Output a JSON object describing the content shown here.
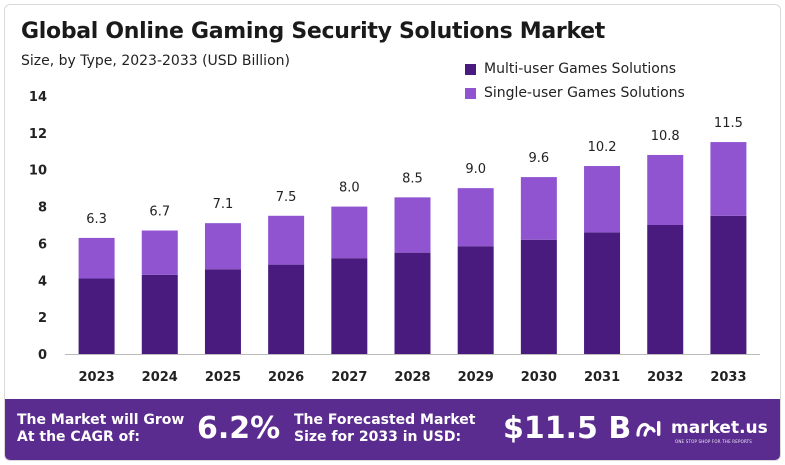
{
  "title": "Global Online Gaming Security Solutions Market",
  "subtitle": "Size, by Type, 2023-2033 (USD Billion)",
  "colors": {
    "multi": "#4a1b7e",
    "single": "#9154d1",
    "footer": "#5b2c8f",
    "bar_label": "#222222"
  },
  "chart_data": {
    "type": "bar",
    "stacked": true,
    "categories": [
      "2023",
      "2024",
      "2025",
      "2026",
      "2027",
      "2028",
      "2029",
      "2030",
      "2031",
      "2032",
      "2033"
    ],
    "series": [
      {
        "name": "Multi-user Games Solutions",
        "values": [
          4.1,
          4.3,
          4.6,
          4.85,
          5.2,
          5.5,
          5.85,
          6.2,
          6.6,
          7.0,
          7.5
        ]
      },
      {
        "name": "Single-user Games Solutions",
        "values": [
          2.2,
          2.4,
          2.5,
          2.65,
          2.8,
          3.0,
          3.15,
          3.4,
          3.6,
          3.8,
          4.0
        ]
      }
    ],
    "totals": [
      "6.3",
      "6.7",
      "7.1",
      "7.5",
      "8.0",
      "8.5",
      "9.0",
      "9.6",
      "10.2",
      "10.8",
      "11.5"
    ],
    "yticks": [
      "0",
      "2",
      "4",
      "6",
      "8",
      "10",
      "12",
      "14"
    ],
    "ylim": [
      0,
      14
    ],
    "grid": false,
    "legend_position": "top-right"
  },
  "footer": {
    "cagr_label_line1": "The Market will Grow",
    "cagr_label_line2": "At the CAGR of:",
    "cagr_value": "6.2%",
    "forecast_label_line1": "The Forecasted Market",
    "forecast_label_line2": "Size for 2033 in USD:",
    "forecast_value": "$11.5 B",
    "brand_name": "market.us",
    "brand_tagline": "ONE STOP SHOP FOR THE REPORTS",
    "brand_icon": "market-us-logo-icon"
  }
}
